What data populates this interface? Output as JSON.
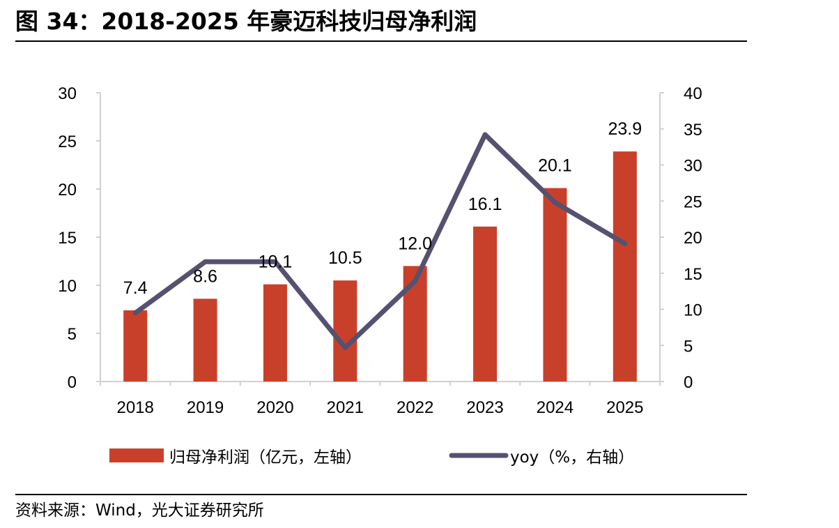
{
  "header": {
    "title": "图 34：2018-2025 年豪迈科技归母净利润"
  },
  "footer": {
    "source": "资料来源：Wind，光大证券研究所"
  },
  "colors": {
    "bar": "#C9402A",
    "line": "#555170",
    "axis": "#d0d0d0",
    "rule": "#000000"
  },
  "chart_data": {
    "type": "bar",
    "categories": [
      "2018",
      "2019",
      "2020",
      "2021",
      "2022",
      "2023",
      "2024",
      "2025"
    ],
    "series": [
      {
        "name": "归母净利润（亿元，左轴）",
        "type": "bar",
        "axis": "left",
        "values": [
          7.4,
          8.6,
          10.1,
          10.5,
          12.0,
          16.1,
          20.1,
          23.9
        ],
        "labels": [
          "7.4",
          "8.6",
          "10.1",
          "10.5",
          "12.0",
          "16.1",
          "20.1",
          "23.9"
        ]
      },
      {
        "name": "yoy（%，右轴）",
        "type": "line",
        "axis": "right",
        "values": [
          9.5,
          16.6,
          16.6,
          4.7,
          13.9,
          34.2,
          24.8,
          19.1
        ]
      }
    ],
    "y_left": {
      "min": 0,
      "max": 30,
      "ticks": [
        "0",
        "5",
        "10",
        "15",
        "20",
        "25",
        "30"
      ]
    },
    "y_right": {
      "min": 0,
      "max": 40,
      "ticks": [
        "0",
        "5",
        "10",
        "15",
        "20",
        "25",
        "30",
        "35",
        "40"
      ]
    },
    "grid": false,
    "legend": "bottom"
  }
}
